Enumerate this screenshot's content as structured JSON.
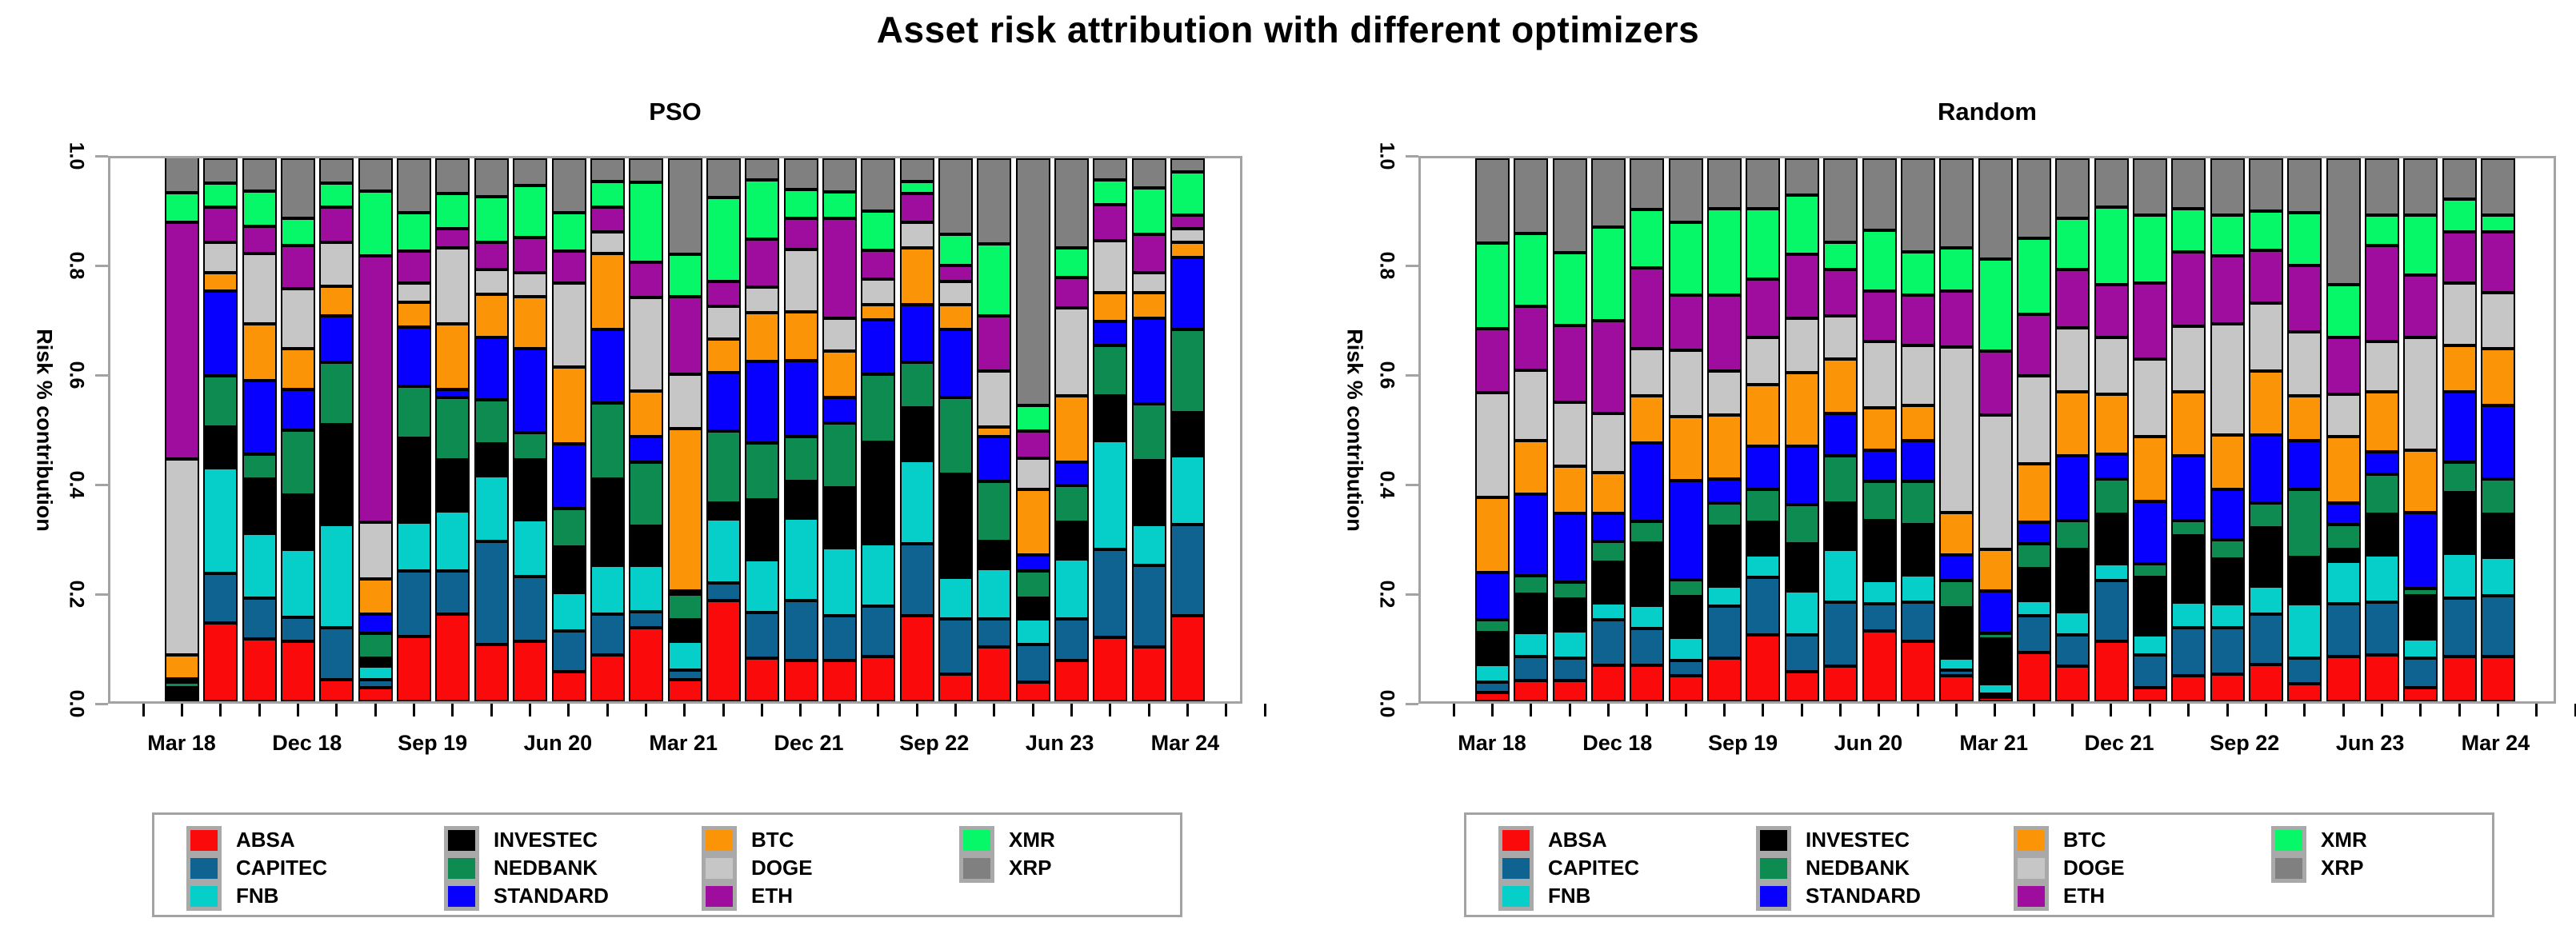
{
  "title": "Asset risk attribution with different optimizers",
  "colors": {
    "ABSA": "#fa0a0a",
    "CAPITEC": "#0f6390",
    "FNB": "#06cec8",
    "INVESTEC": "#000000",
    "NEDBANK": "#0e8b50",
    "STANDARD": "#0800ff",
    "BTC": "#fb9407",
    "DOGE": "#c6c6c6",
    "ETH": "#9f0d9f",
    "XMR": "#06f768",
    "XRP": "#808080"
  },
  "legend": {
    "columns": [
      [
        "ABSA",
        "CAPITEC",
        "FNB"
      ],
      [
        "INVESTEC",
        "NEDBANK",
        "STANDARD"
      ],
      [
        "BTC",
        "DOGE",
        "ETH"
      ],
      [
        "XMR",
        "XRP"
      ]
    ]
  },
  "chart_data": [
    {
      "type": "bar",
      "stacked": true,
      "title": "PSO",
      "ylabel": "Risk % contribution",
      "ylim": [
        0,
        1
      ],
      "ytick_labels": [
        "0.0",
        "0.2",
        "0.4",
        "0.6",
        "0.8",
        "1.0"
      ],
      "yticks": [
        0.0,
        0.2,
        0.4,
        0.6,
        0.8,
        1.0
      ],
      "x_tick_labels": [
        "Mar 18",
        "Dec 18",
        "Sep 19",
        "Jun 20",
        "Mar 21",
        "Dec 21",
        "Sep 22",
        "Jun 23",
        "Mar 24"
      ],
      "n_bars": 27,
      "grid": false,
      "legend_position": "bottom",
      "series": [
        {
          "name": "ABSA",
          "values": [
            0.004,
            0.145,
            0.115,
            0.11,
            0.04,
            0.025,
            0.12,
            0.16,
            0.105,
            0.11,
            0.055,
            0.085,
            0.135,
            0.04,
            0.186,
            0.08,
            0.075,
            0.075,
            0.082,
            0.158,
            0.05,
            0.1,
            0.036,
            0.075,
            0.118,
            0.1,
            0.158
          ]
        },
        {
          "name": "CAPITEC",
          "values": [
            0.004,
            0.09,
            0.075,
            0.045,
            0.095,
            0.015,
            0.12,
            0.08,
            0.19,
            0.12,
            0.075,
            0.075,
            0.03,
            0.017,
            0.032,
            0.083,
            0.111,
            0.083,
            0.094,
            0.132,
            0.101,
            0.051,
            0.068,
            0.076,
            0.162,
            0.151,
            0.168
          ]
        },
        {
          "name": "FNB",
          "values": [
            0.002,
            0.195,
            0.12,
            0.125,
            0.19,
            0.025,
            0.09,
            0.11,
            0.12,
            0.105,
            0.07,
            0.09,
            0.085,
            0.054,
            0.118,
            0.097,
            0.151,
            0.125,
            0.114,
            0.154,
            0.078,
            0.093,
            0.047,
            0.111,
            0.2,
            0.075,
            0.126
          ]
        },
        {
          "name": "INVESTEC",
          "values": [
            0.008,
            0.075,
            0.1,
            0.1,
            0.185,
            0.015,
            0.155,
            0.095,
            0.06,
            0.11,
            0.085,
            0.16,
            0.072,
            0.04,
            0.029,
            0.111,
            0.068,
            0.111,
            0.187,
            0.097,
            0.19,
            0.05,
            0.039,
            0.068,
            0.083,
            0.118,
            0.079
          ]
        },
        {
          "name": "NEDBANK",
          "values": [
            0.01,
            0.095,
            0.045,
            0.12,
            0.115,
            0.045,
            0.095,
            0.115,
            0.08,
            0.05,
            0.07,
            0.14,
            0.118,
            0.046,
            0.133,
            0.105,
            0.082,
            0.119,
            0.125,
            0.083,
            0.14,
            0.111,
            0.05,
            0.068,
            0.093,
            0.104,
            0.154
          ]
        },
        {
          "name": "STANDARD",
          "values": [
            0.002,
            0.155,
            0.135,
            0.075,
            0.085,
            0.035,
            0.11,
            0.015,
            0.115,
            0.155,
            0.12,
            0.135,
            0.047,
            0.007,
            0.108,
            0.15,
            0.14,
            0.046,
            0.101,
            0.107,
            0.126,
            0.082,
            0.029,
            0.043,
            0.043,
            0.158,
            0.132
          ]
        },
        {
          "name": "BTC",
          "values": [
            0.044,
            0.035,
            0.105,
            0.075,
            0.055,
            0.065,
            0.045,
            0.12,
            0.08,
            0.095,
            0.14,
            0.14,
            0.085,
            0.298,
            0.061,
            0.09,
            0.09,
            0.086,
            0.028,
            0.104,
            0.046,
            0.018,
            0.122,
            0.122,
            0.053,
            0.047,
            0.029
          ]
        },
        {
          "name": "DOGE",
          "values": [
            0.361,
            0.055,
            0.13,
            0.11,
            0.08,
            0.105,
            0.035,
            0.14,
            0.045,
            0.045,
            0.155,
            0.04,
            0.172,
            0.1,
            0.061,
            0.047,
            0.115,
            0.061,
            0.047,
            0.047,
            0.043,
            0.104,
            0.057,
            0.161,
            0.097,
            0.036,
            0.025
          ]
        },
        {
          "name": "ETH",
          "values": [
            0.435,
            0.065,
            0.05,
            0.08,
            0.065,
            0.49,
            0.06,
            0.035,
            0.05,
            0.065,
            0.06,
            0.045,
            0.065,
            0.143,
            0.046,
            0.089,
            0.057,
            0.183,
            0.053,
            0.053,
            0.029,
            0.101,
            0.05,
            0.057,
            0.065,
            0.071,
            0.025
          ]
        },
        {
          "name": "XMR",
          "values": [
            0.055,
            0.045,
            0.065,
            0.05,
            0.045,
            0.12,
            0.07,
            0.065,
            0.085,
            0.095,
            0.07,
            0.047,
            0.147,
            0.079,
            0.154,
            0.108,
            0.054,
            0.05,
            0.072,
            0.022,
            0.057,
            0.132,
            0.047,
            0.054,
            0.047,
            0.086,
            0.079
          ]
        },
        {
          "name": "XRP",
          "values": [
            0.075,
            0.045,
            0.06,
            0.11,
            0.045,
            0.06,
            0.1,
            0.065,
            0.07,
            0.05,
            0.1,
            0.043,
            0.044,
            0.176,
            0.072,
            0.04,
            0.057,
            0.061,
            0.097,
            0.043,
            0.14,
            0.158,
            0.455,
            0.165,
            0.039,
            0.054,
            0.025
          ]
        }
      ]
    },
    {
      "type": "bar",
      "stacked": true,
      "title": "Random",
      "ylabel": "Risk % contribution",
      "ylim": [
        0,
        1
      ],
      "ytick_labels": [
        "0.0",
        "0.2",
        "0.4",
        "0.6",
        "0.8",
        "1.0"
      ],
      "yticks": [
        0.0,
        0.2,
        0.4,
        0.6,
        0.8,
        1.0
      ],
      "x_tick_labels": [
        "Mar 18",
        "Dec 18",
        "Sep 19",
        "Jun 20",
        "Mar 21",
        "Dec 21",
        "Sep 22",
        "Jun 23",
        "Mar 24"
      ],
      "n_bars": 27,
      "grid": false,
      "legend_position": "bottom",
      "series": [
        {
          "name": "ABSA",
          "values": [
            0.016,
            0.039,
            0.039,
            0.067,
            0.067,
            0.047,
            0.079,
            0.122,
            0.054,
            0.065,
            0.129,
            0.111,
            0.047,
            0.007,
            0.09,
            0.065,
            0.111,
            0.025,
            0.047,
            0.05,
            0.068,
            0.032,
            0.082,
            0.086,
            0.025,
            0.082,
            0.082
          ]
        },
        {
          "name": "CAPITEC",
          "values": [
            0.02,
            0.044,
            0.04,
            0.083,
            0.067,
            0.028,
            0.097,
            0.107,
            0.068,
            0.118,
            0.05,
            0.072,
            0.01,
            0.007,
            0.068,
            0.057,
            0.111,
            0.061,
            0.089,
            0.086,
            0.093,
            0.047,
            0.097,
            0.097,
            0.054,
            0.108,
            0.112
          ]
        },
        {
          "name": "FNB",
          "values": [
            0.032,
            0.043,
            0.051,
            0.031,
            0.043,
            0.043,
            0.036,
            0.04,
            0.082,
            0.097,
            0.043,
            0.05,
            0.022,
            0.018,
            0.028,
            0.043,
            0.032,
            0.036,
            0.047,
            0.043,
            0.051,
            0.1,
            0.079,
            0.086,
            0.036,
            0.082,
            0.071
          ]
        },
        {
          "name": "INVESTEC",
          "values": [
            0.059,
            0.071,
            0.059,
            0.075,
            0.114,
            0.075,
            0.111,
            0.061,
            0.086,
            0.086,
            0.111,
            0.093,
            0.093,
            0.083,
            0.058,
            0.115,
            0.09,
            0.107,
            0.122,
            0.083,
            0.107,
            0.086,
            0.022,
            0.075,
            0.079,
            0.112,
            0.079
          ]
        },
        {
          "name": "NEDBANK",
          "values": [
            0.024,
            0.035,
            0.031,
            0.039,
            0.04,
            0.031,
            0.043,
            0.061,
            0.072,
            0.086,
            0.072,
            0.079,
            0.05,
            0.01,
            0.046,
            0.053,
            0.065,
            0.025,
            0.028,
            0.035,
            0.047,
            0.126,
            0.046,
            0.075,
            0.014,
            0.057,
            0.065
          ]
        },
        {
          "name": "STANDARD",
          "values": [
            0.086,
            0.15,
            0.126,
            0.051,
            0.145,
            0.182,
            0.043,
            0.079,
            0.108,
            0.078,
            0.057,
            0.075,
            0.047,
            0.079,
            0.04,
            0.119,
            0.046,
            0.115,
            0.119,
            0.094,
            0.125,
            0.089,
            0.04,
            0.04,
            0.14,
            0.129,
            0.136
          ]
        },
        {
          "name": "BTC",
          "values": [
            0.138,
            0.098,
            0.087,
            0.075,
            0.087,
            0.118,
            0.118,
            0.114,
            0.136,
            0.101,
            0.079,
            0.065,
            0.079,
            0.076,
            0.107,
            0.118,
            0.111,
            0.118,
            0.118,
            0.1,
            0.118,
            0.083,
            0.121,
            0.111,
            0.114,
            0.086,
            0.104
          ]
        },
        {
          "name": "DOGE",
          "values": [
            0.193,
            0.13,
            0.118,
            0.11,
            0.087,
            0.122,
            0.082,
            0.086,
            0.1,
            0.079,
            0.122,
            0.111,
            0.304,
            0.247,
            0.162,
            0.118,
            0.104,
            0.144,
            0.121,
            0.204,
            0.125,
            0.118,
            0.079,
            0.093,
            0.208,
            0.115,
            0.104
          ]
        },
        {
          "name": "ETH",
          "values": [
            0.118,
            0.118,
            0.142,
            0.17,
            0.149,
            0.102,
            0.14,
            0.108,
            0.118,
            0.086,
            0.093,
            0.093,
            0.104,
            0.118,
            0.114,
            0.108,
            0.097,
            0.14,
            0.137,
            0.126,
            0.097,
            0.122,
            0.104,
            0.176,
            0.115,
            0.093,
            0.111
          ]
        },
        {
          "name": "XMR",
          "values": [
            0.158,
            0.134,
            0.134,
            0.173,
            0.107,
            0.134,
            0.158,
            0.129,
            0.108,
            0.05,
            0.112,
            0.079,
            0.079,
            0.169,
            0.14,
            0.093,
            0.143,
            0.125,
            0.079,
            0.075,
            0.072,
            0.097,
            0.097,
            0.057,
            0.111,
            0.061,
            0.032
          ]
        },
        {
          "name": "XRP",
          "values": [
            0.156,
            0.138,
            0.173,
            0.126,
            0.094,
            0.118,
            0.093,
            0.093,
            0.068,
            0.154,
            0.132,
            0.172,
            0.165,
            0.186,
            0.147,
            0.111,
            0.09,
            0.104,
            0.093,
            0.104,
            0.097,
            0.1,
            0.233,
            0.104,
            0.104,
            0.075,
            0.104
          ]
        }
      ]
    }
  ]
}
